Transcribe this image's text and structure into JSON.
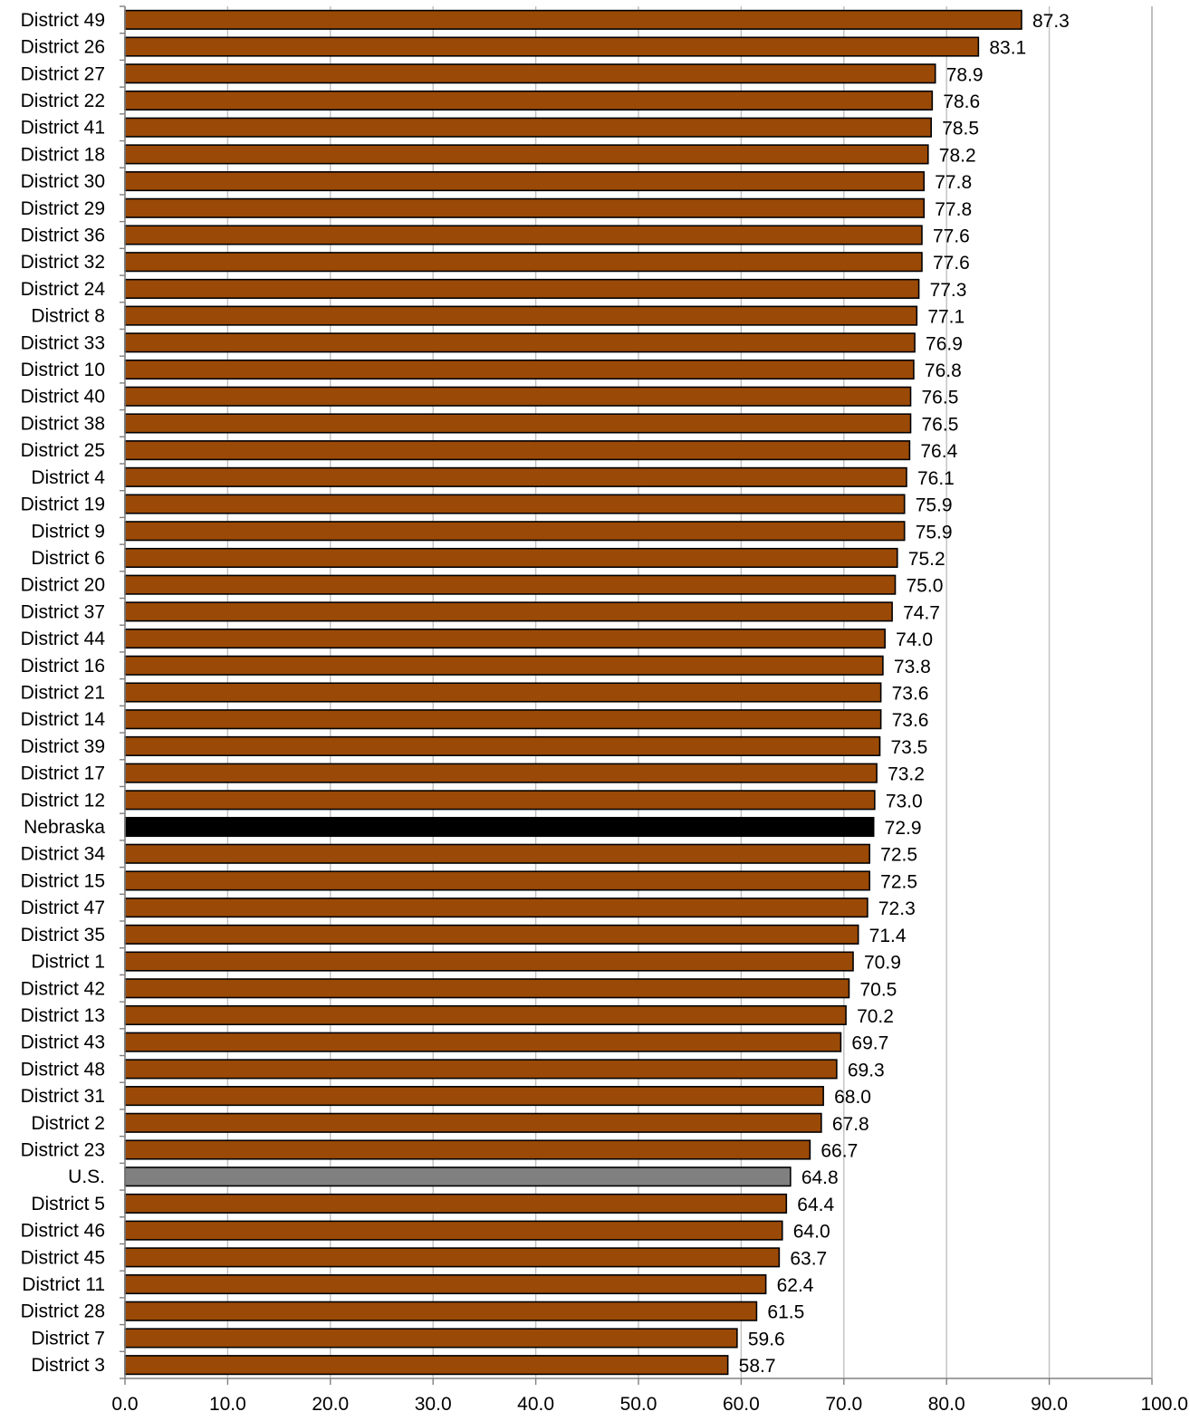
{
  "chart_data": {
    "type": "bar",
    "orientation": "horizontal",
    "title": "",
    "xlabel": "",
    "ylabel": "",
    "xlim": [
      0,
      100
    ],
    "x_ticks": [
      "0.0",
      "10.0",
      "20.0",
      "30.0",
      "40.0",
      "50.0",
      "60.0",
      "70.0",
      "80.0",
      "90.0",
      "100.0"
    ],
    "grid": "vertical",
    "legend": "none",
    "colors": {
      "district": "#9a4a06",
      "Nebraska": "#000000",
      "U.S.": "#808080",
      "gridline": "#c0c0c0"
    },
    "categories": [
      "District 49",
      "District 26",
      "District 27",
      "District 22",
      "District 41",
      "District 18",
      "District 30",
      "District 29",
      "District 36",
      "District 32",
      "District 24",
      "District 8",
      "District 33",
      "District 10",
      "District 40",
      "District 38",
      "District 25",
      "District 4",
      "District 19",
      "District 9",
      "District 6",
      "District 20",
      "District 37",
      "District 44",
      "District 16",
      "District 21",
      "District 14",
      "District 39",
      "District 17",
      "District 12",
      "Nebraska",
      "District 34",
      "District 15",
      "District 47",
      "District 35",
      "District 1",
      "District 42",
      "District 13",
      "District 43",
      "District 48",
      "District 31",
      "District 2",
      "District 23",
      "U.S.",
      "District 5",
      "District 46",
      "District 45",
      "District 11",
      "District 28",
      "District 7",
      "District 3"
    ],
    "values": [
      87.3,
      83.1,
      78.9,
      78.6,
      78.5,
      78.2,
      77.8,
      77.8,
      77.6,
      77.6,
      77.3,
      77.1,
      76.9,
      76.8,
      76.5,
      76.5,
      76.4,
      76.1,
      75.9,
      75.9,
      75.2,
      75.0,
      74.7,
      74.0,
      73.8,
      73.6,
      73.6,
      73.5,
      73.2,
      73.0,
      72.9,
      72.5,
      72.5,
      72.3,
      71.4,
      70.9,
      70.5,
      70.2,
      69.7,
      69.3,
      68.0,
      67.8,
      66.7,
      64.8,
      64.4,
      64.0,
      63.7,
      62.4,
      61.5,
      59.6,
      58.7
    ],
    "value_labels": [
      "87.3",
      "83.1",
      "78.9",
      "78.6",
      "78.5",
      "78.2",
      "77.8",
      "77.8",
      "77.6",
      "77.6",
      "77.3",
      "77.1",
      "76.9",
      "76.8",
      "76.5",
      "76.5",
      "76.4",
      "76.1",
      "75.9",
      "75.9",
      "75.2",
      "75.0",
      "74.7",
      "74.0",
      "73.8",
      "73.6",
      "73.6",
      "73.5",
      "73.2",
      "73.0",
      "72.9",
      "72.5",
      "72.5",
      "72.3",
      "71.4",
      "70.9",
      "70.5",
      "70.2",
      "69.7",
      "69.3",
      "68.0",
      "67.8",
      "66.7",
      "64.8",
      "64.4",
      "64.0",
      "63.7",
      "62.4",
      "61.5",
      "59.6",
      "58.7"
    ]
  }
}
